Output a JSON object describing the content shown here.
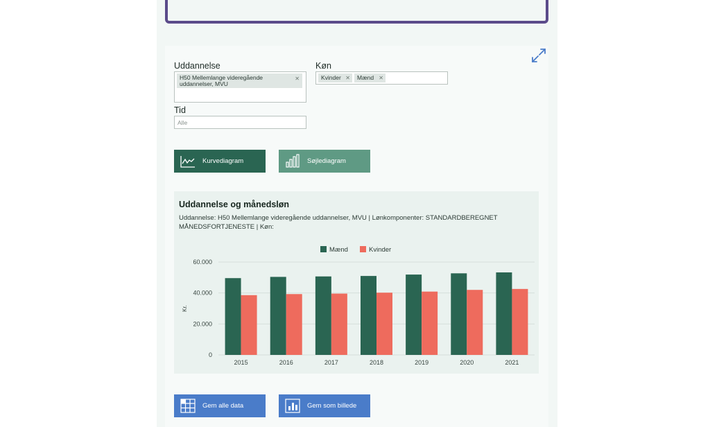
{
  "filters": {
    "education": {
      "label": "Uddannelse",
      "chips": [
        "H50 Mellemlange videregående uddannelser, MVU"
      ]
    },
    "gender": {
      "label": "Køn",
      "chips": [
        "Kvinder",
        "Mænd"
      ]
    },
    "time": {
      "label": "Tid",
      "placeholder": "Alle"
    }
  },
  "view_buttons": {
    "line": "Kurvediagram",
    "bar": "Søjlediagram"
  },
  "chart": {
    "title": "Uddannelse og månedsløn",
    "subtitle": "Uddannelse: H50 Mellemlange videregående uddannelser, MVU | Lønkomponenter: STANDARDBEREGNET MÅNEDSFORTJENESTE | Køn:"
  },
  "chart_data": {
    "type": "bar",
    "title": "Uddannelse og månedsløn",
    "xlabel": "",
    "ylabel": "Kr.",
    "categories": [
      "2015",
      "2016",
      "2017",
      "2018",
      "2019",
      "2020",
      "2021"
    ],
    "series": [
      {
        "name": "Mænd",
        "color": "#2a6552",
        "values": [
          49600,
          50400,
          50700,
          51000,
          51900,
          52700,
          53300
        ]
      },
      {
        "name": "Kvinder",
        "color": "#ee6b5d",
        "values": [
          38600,
          39300,
          39600,
          40200,
          40900,
          42000,
          42600
        ]
      }
    ],
    "ylim": [
      0,
      60000
    ],
    "yticks": [
      "0",
      "20.000",
      "40.000",
      "60.000"
    ],
    "ytick_values": [
      0,
      20000,
      40000,
      60000
    ],
    "grid": true,
    "legend": "top-center"
  },
  "actions": {
    "save_data": "Gem alle data",
    "save_image": "Gem som billede"
  }
}
